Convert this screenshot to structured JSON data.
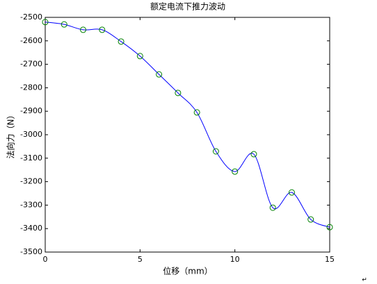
{
  "chart_data": {
    "type": "line",
    "title": "额定电流下推力波动",
    "x_label": "位移（mm）",
    "y_label": "法向力（N）",
    "x": [
      0,
      1,
      2,
      3,
      4,
      5,
      6,
      7,
      8,
      9,
      10,
      11,
      12,
      13,
      14,
      15
    ],
    "series": [
      {
        "color": "#0000ff",
        "marker_color": "#008000",
        "values": [
          -2520,
          -2530,
          -2553,
          -2553,
          -2603,
          -2665,
          -2743,
          -2822,
          -2905,
          -3071,
          -3157,
          -3083,
          -3311,
          -3246,
          -3361,
          -3394
        ]
      }
    ],
    "xlim": [
      0,
      15
    ],
    "xticks": [
      0,
      5,
      10,
      15
    ],
    "ylim": [
      -3500,
      -2500
    ],
    "yticks": [
      -3500,
      -3400,
      -3300,
      -3200,
      -3100,
      -3000,
      -2900,
      -2800,
      -2700,
      -2600,
      -2500
    ],
    "grid": false,
    "trailing_mark": "↵"
  }
}
